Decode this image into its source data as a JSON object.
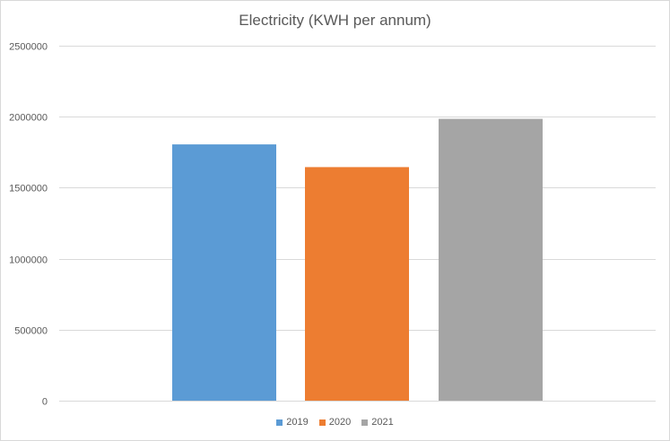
{
  "chart_data": {
    "type": "bar",
    "title": "Electricity  (KWH per annum)",
    "categories": [
      "2019",
      "2020",
      "2021"
    ],
    "values": [
      1805000,
      1645000,
      1985000
    ],
    "colors": [
      "#5b9bd5",
      "#ed7d31",
      "#a5a5a5"
    ],
    "xlabel": "",
    "ylabel": "",
    "ylim": [
      0,
      2500000
    ],
    "yticks": [
      "0",
      "500000",
      "1000000",
      "1500000",
      "2000000",
      "2500000"
    ],
    "grid": true,
    "legend_position": "bottom",
    "legend": [
      {
        "label": "2019",
        "color": "#5b9bd5"
      },
      {
        "label": "2020",
        "color": "#ed7d31"
      },
      {
        "label": "2021",
        "color": "#a5a5a5"
      }
    ]
  }
}
